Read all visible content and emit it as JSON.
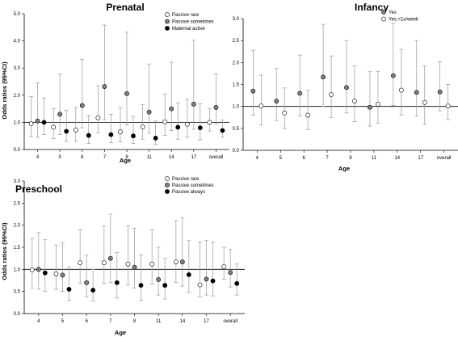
{
  "chart_data": [
    {
      "type": "scatter",
      "subtype": "errorbar",
      "title": "Prenatal",
      "xlabel": "Age",
      "ylabel": "Odds ratios (95%CI)",
      "ylim": [
        0,
        5
      ],
      "yticks": [
        "0.0",
        "1.0",
        "2.0",
        "3.0",
        "4.0",
        "5.0"
      ],
      "reference_line": 1.0,
      "categories": [
        "4",
        "5",
        "6",
        "7",
        "8",
        "11",
        "14",
        "17",
        "overall"
      ],
      "legend_position": "top-right",
      "series": [
        {
          "name": "Passive rare",
          "marker": "open",
          "values": [
            0.95,
            0.82,
            0.72,
            1.17,
            0.65,
            0.83,
            1.02,
            0.93,
            1.0
          ],
          "lower": [
            0.48,
            0.4,
            0.3,
            0.62,
            0.28,
            0.38,
            0.52,
            0.45,
            0.68
          ],
          "upper": [
            1.95,
            1.5,
            1.55,
            2.35,
            1.55,
            1.65,
            2.05,
            1.85,
            1.5
          ]
        },
        {
          "name": "Passive sometimes",
          "marker": "gray",
          "values": [
            1.05,
            1.3,
            1.62,
            2.32,
            2.06,
            1.38,
            1.5,
            1.67,
            1.55
          ],
          "lower": [
            0.45,
            0.55,
            0.8,
            1.1,
            0.9,
            0.6,
            0.7,
            0.75,
            0.95
          ],
          "upper": [
            2.45,
            2.78,
            3.32,
            4.58,
            4.32,
            3.15,
            3.22,
            4.02,
            2.78
          ]
        },
        {
          "name": "Maternal active",
          "marker": "black",
          "values": [
            1.0,
            0.67,
            0.52,
            0.55,
            0.5,
            0.42,
            0.82,
            0.8,
            0.7
          ],
          "lower": [
            0.55,
            0.3,
            0.22,
            0.25,
            0.22,
            0.18,
            0.38,
            0.36,
            0.45
          ],
          "upper": [
            1.9,
            1.45,
            1.25,
            1.3,
            1.22,
            1.05,
            1.72,
            1.68,
            1.08
          ]
        }
      ]
    },
    {
      "type": "scatter",
      "subtype": "errorbar",
      "title": "Infancy",
      "xlabel": "Age",
      "ylabel": "",
      "ylim": [
        0,
        3
      ],
      "yticks": [
        "0.0",
        "0.5",
        "1.0",
        "1.5",
        "2.0",
        "2.5",
        "3.0"
      ],
      "reference_line": 1.0,
      "categories": [
        "4",
        "5",
        "6",
        "7",
        "8",
        "11",
        "14",
        "17",
        "overall"
      ],
      "legend_position": "top-right",
      "series": [
        {
          "name": "Yes",
          "marker": "gray",
          "values": [
            1.35,
            1.12,
            1.3,
            1.67,
            1.43,
            0.98,
            1.7,
            1.32,
            1.33
          ],
          "lower": [
            0.8,
            0.68,
            0.78,
            1.0,
            0.85,
            0.55,
            1.02,
            0.78,
            0.9
          ],
          "upper": [
            2.28,
            1.87,
            2.17,
            2.87,
            2.5,
            1.79,
            2.9,
            2.5,
            2.02
          ]
        },
        {
          "name": "Yes,<1x/week",
          "marker": "open",
          "values": [
            1.01,
            0.85,
            0.8,
            1.27,
            1.12,
            1.05,
            1.37,
            1.09,
            1.01
          ],
          "lower": [
            0.58,
            0.5,
            0.47,
            0.75,
            0.65,
            0.62,
            0.8,
            0.6,
            0.7
          ],
          "upper": [
            1.71,
            1.42,
            1.37,
            2.15,
            1.92,
            1.8,
            2.3,
            1.92,
            1.5
          ]
        }
      ]
    },
    {
      "type": "scatter",
      "subtype": "errorbar",
      "title": "Preschool",
      "xlabel": "Age",
      "ylabel": "Odds ratios (95%CI)",
      "ylim": [
        0,
        3
      ],
      "yticks": [
        "0.0",
        "0.5",
        "1.0",
        "1.5",
        "2.0",
        "2.5",
        "3.0"
      ],
      "reference_line": 1.0,
      "categories": [
        "4",
        "5",
        "6",
        "7",
        "8",
        "11",
        "14",
        "17",
        "overall"
      ],
      "legend_position": "top-right",
      "series": [
        {
          "name": "Passive rare",
          "marker": "open",
          "values": [
            0.99,
            0.9,
            1.15,
            1.15,
            1.12,
            1.12,
            1.17,
            0.65,
            1.06
          ],
          "lower": [
            0.58,
            0.55,
            0.68,
            0.68,
            0.65,
            0.66,
            0.7,
            0.38,
            0.78
          ],
          "upper": [
            1.7,
            1.55,
            1.9,
            1.98,
            1.98,
            1.9,
            2.1,
            1.62,
            1.5
          ]
        },
        {
          "name": "Passive sometimes",
          "marker": "gray",
          "values": [
            1.0,
            0.87,
            0.7,
            1.25,
            1.05,
            0.77,
            1.17,
            0.78,
            0.93
          ],
          "lower": [
            0.55,
            0.5,
            0.38,
            0.7,
            0.58,
            0.42,
            0.62,
            0.42,
            0.6
          ],
          "upper": [
            1.83,
            1.6,
            1.32,
            2.25,
            1.93,
            1.5,
            2.17,
            1.65,
            1.45
          ]
        },
        {
          "name": "Passive always",
          "marker": "black",
          "values": [
            0.92,
            0.55,
            0.53,
            0.7,
            0.64,
            0.64,
            0.88,
            0.74,
            0.68
          ],
          "lower": [
            0.5,
            0.3,
            0.28,
            0.35,
            0.3,
            0.33,
            0.48,
            0.4,
            0.42
          ],
          "upper": [
            1.67,
            1.05,
            1.0,
            1.38,
            1.33,
            1.25,
            1.65,
            1.62,
            1.12
          ]
        }
      ]
    }
  ],
  "marker_fills": {
    "open": "#ffffff",
    "gray": "#808080",
    "black": "#000000"
  },
  "errorbar_color": "#999999",
  "axis_color": "#000000"
}
